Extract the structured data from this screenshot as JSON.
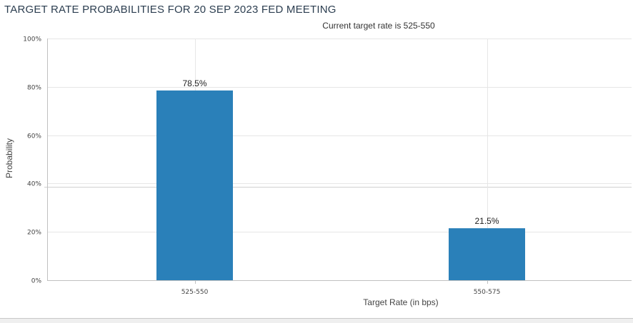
{
  "page": {
    "title": "TARGET RATE PROBABILITIES FOR 20 SEP 2023 FED MEETING"
  },
  "chart_data": {
    "type": "bar",
    "subtitle": "Current target rate is 525-550",
    "categories": [
      "525-550",
      "550-575"
    ],
    "values": [
      78.5,
      21.5
    ],
    "value_labels": [
      "78.5%",
      "21.5%"
    ],
    "xlabel": "Target Rate (in bps)",
    "ylabel": "Probability",
    "ylim": [
      0,
      100
    ],
    "yticks": [
      0,
      20,
      40,
      60,
      80,
      100
    ],
    "ytick_labels": [
      "0%",
      "20%",
      "40%",
      "60%",
      "80%",
      "100%"
    ],
    "grid": true,
    "legend": "none",
    "bar_color": "#2a80b9"
  }
}
